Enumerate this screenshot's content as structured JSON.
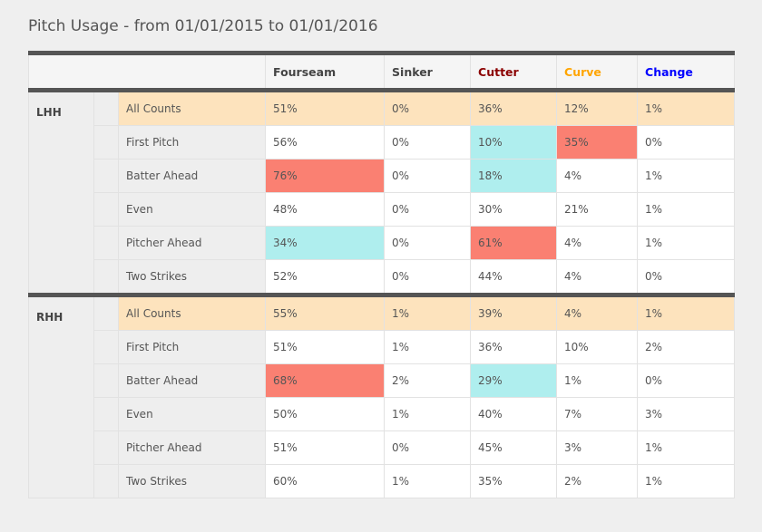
{
  "title": "Pitch Usage - from 01/01/2015 to 01/01/2016",
  "colors": {
    "background": "#efefef",
    "all_counts_row": "#fde3bd",
    "high_highlight": "#fa8072",
    "low_highlight": "#afeeee",
    "rule": "#555555"
  },
  "pitch_types": [
    {
      "label": "Fourseam",
      "color": "#444444"
    },
    {
      "label": "Sinker",
      "color": "#444444"
    },
    {
      "label": "Cutter",
      "color": "#8b0000"
    },
    {
      "label": "Curve",
      "color": "#ffa500"
    },
    {
      "label": "Change",
      "color": "#0000ff"
    }
  ],
  "groups": [
    {
      "hand": "LHH",
      "rows": [
        {
          "count": "All Counts",
          "values": [
            "51%",
            "0%",
            "36%",
            "12%",
            "1%"
          ],
          "highlights": [
            "",
            "",
            "",
            "",
            ""
          ]
        },
        {
          "count": "First Pitch",
          "values": [
            "56%",
            "0%",
            "10%",
            "35%",
            "0%"
          ],
          "highlights": [
            "",
            "",
            "low",
            "high",
            ""
          ]
        },
        {
          "count": "Batter Ahead",
          "values": [
            "76%",
            "0%",
            "18%",
            "4%",
            "1%"
          ],
          "highlights": [
            "high",
            "",
            "low",
            "",
            ""
          ]
        },
        {
          "count": "Even",
          "values": [
            "48%",
            "0%",
            "30%",
            "21%",
            "1%"
          ],
          "highlights": [
            "",
            "",
            "",
            "",
            ""
          ]
        },
        {
          "count": "Pitcher Ahead",
          "values": [
            "34%",
            "0%",
            "61%",
            "4%",
            "1%"
          ],
          "highlights": [
            "low",
            "",
            "high",
            "",
            ""
          ]
        },
        {
          "count": "Two Strikes",
          "values": [
            "52%",
            "0%",
            "44%",
            "4%",
            "0%"
          ],
          "highlights": [
            "",
            "",
            "",
            "",
            ""
          ]
        }
      ]
    },
    {
      "hand": "RHH",
      "rows": [
        {
          "count": "All Counts",
          "values": [
            "55%",
            "1%",
            "39%",
            "4%",
            "1%"
          ],
          "highlights": [
            "",
            "",
            "",
            "",
            ""
          ]
        },
        {
          "count": "First Pitch",
          "values": [
            "51%",
            "1%",
            "36%",
            "10%",
            "2%"
          ],
          "highlights": [
            "",
            "",
            "",
            "",
            ""
          ]
        },
        {
          "count": "Batter Ahead",
          "values": [
            "68%",
            "2%",
            "29%",
            "1%",
            "0%"
          ],
          "highlights": [
            "high",
            "",
            "low",
            "",
            ""
          ]
        },
        {
          "count": "Even",
          "values": [
            "50%",
            "1%",
            "40%",
            "7%",
            "3%"
          ],
          "highlights": [
            "",
            "",
            "",
            "",
            ""
          ]
        },
        {
          "count": "Pitcher Ahead",
          "values": [
            "51%",
            "0%",
            "45%",
            "3%",
            "1%"
          ],
          "highlights": [
            "",
            "",
            "",
            "",
            ""
          ]
        },
        {
          "count": "Two Strikes",
          "values": [
            "60%",
            "1%",
            "35%",
            "2%",
            "1%"
          ],
          "highlights": [
            "",
            "",
            "",
            "",
            ""
          ]
        }
      ]
    }
  ]
}
